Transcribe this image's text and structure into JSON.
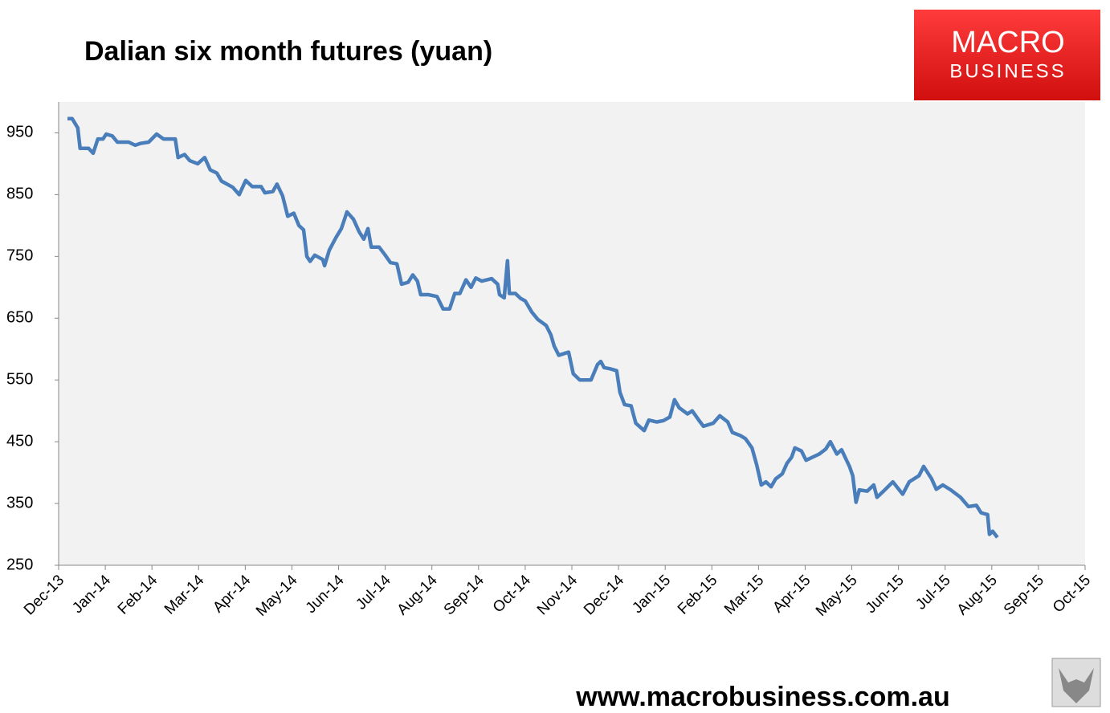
{
  "chart_data": {
    "type": "line",
    "title": "Dalian six month futures (yuan)",
    "x": [
      0.19,
      0.29,
      0.41,
      0.46,
      0.64,
      0.74,
      0.84,
      0.95,
      1.02,
      1.15,
      1.26,
      1.5,
      1.64,
      1.76,
      1.93,
      2.1,
      2.25,
      2.5,
      2.56,
      2.7,
      2.81,
      2.98,
      3.13,
      3.25,
      3.39,
      3.49,
      3.73,
      3.87,
      4.01,
      4.15,
      4.34,
      4.42,
      4.59,
      4.68,
      4.8,
      4.91,
      5.04,
      5.15,
      5.25,
      5.32,
      5.39,
      5.49,
      5.66,
      5.7,
      5.8,
      5.94,
      6.06,
      6.18,
      6.32,
      6.44,
      6.54,
      6.63,
      6.7,
      6.87,
      7.0,
      7.11,
      7.25,
      7.35,
      7.49,
      7.59,
      7.69,
      7.76,
      7.93,
      8.11,
      8.24,
      8.38,
      8.49,
      8.6,
      8.73,
      8.84,
      8.94,
      9.07,
      9.28,
      9.41,
      9.45,
      9.55,
      9.62,
      9.66,
      9.79,
      9.9,
      10.0,
      10.14,
      10.27,
      10.45,
      10.55,
      10.62,
      10.72,
      10.93,
      11.03,
      11.17,
      11.41,
      11.55,
      11.62,
      11.69,
      11.82,
      11.96,
      12.03,
      12.13,
      12.27,
      12.37,
      12.55,
      12.65,
      12.82,
      12.96,
      13.1,
      13.2,
      13.3,
      13.48,
      13.58,
      13.72,
      13.82,
      14.03,
      14.17,
      14.34,
      14.44,
      14.61,
      14.72,
      14.86,
      14.96,
      15.06,
      15.16,
      15.27,
      15.37,
      15.51,
      15.61,
      15.71,
      15.78,
      15.92,
      16.02,
      16.16,
      16.3,
      16.44,
      16.54,
      16.68,
      16.78,
      16.95,
      17.02,
      17.09,
      17.16,
      17.33,
      17.47,
      17.54,
      17.68,
      17.88,
      18.09,
      18.23,
      18.44,
      18.54,
      18.71,
      18.81,
      18.95,
      19.12,
      19.33,
      19.5,
      19.67,
      19.77,
      19.91,
      19.95,
      20.02,
      20.12
    ],
    "values": [
      973,
      973,
      958,
      925,
      925,
      917,
      940,
      940,
      948,
      945,
      935,
      935,
      930,
      933,
      935,
      948,
      940,
      940,
      910,
      915,
      905,
      900,
      910,
      890,
      885,
      872,
      862,
      850,
      873,
      863,
      863,
      853,
      855,
      867,
      848,
      815,
      820,
      800,
      793,
      750,
      742,
      752,
      745,
      735,
      760,
      780,
      795,
      822,
      810,
      790,
      778,
      795,
      765,
      765,
      752,
      740,
      738,
      705,
      708,
      720,
      710,
      688,
      688,
      685,
      665,
      665,
      690,
      690,
      712,
      700,
      715,
      710,
      714,
      705,
      688,
      683,
      743,
      690,
      690,
      682,
      678,
      660,
      648,
      638,
      623,
      605,
      590,
      595,
      560,
      550,
      550,
      575,
      580,
      570,
      568,
      565,
      530,
      510,
      508,
      480,
      468,
      485,
      482,
      484,
      490,
      518,
      505,
      495,
      500,
      485,
      475,
      480,
      492,
      482,
      465,
      460,
      455,
      440,
      413,
      380,
      385,
      377,
      390,
      398,
      415,
      425,
      440,
      435,
      420,
      425,
      430,
      438,
      450,
      430,
      437,
      410,
      395,
      352,
      372,
      370,
      380,
      360,
      370,
      385,
      365,
      385,
      395,
      410,
      390,
      373,
      380,
      372,
      360,
      345,
      347,
      335,
      332,
      300,
      305,
      295
    ],
    "color": "#4a7ebb",
    "xlim": [
      0,
      22
    ],
    "xticks": [
      {
        "value": 0,
        "label": "Dec-13"
      },
      {
        "value": 1,
        "label": "Jan-14"
      },
      {
        "value": 2,
        "label": "Feb-14"
      },
      {
        "value": 3,
        "label": "Mar-14"
      },
      {
        "value": 4,
        "label": "Apr-14"
      },
      {
        "value": 5,
        "label": "May-14"
      },
      {
        "value": 6,
        "label": "Jun-14"
      },
      {
        "value": 7,
        "label": "Jul-14"
      },
      {
        "value": 8,
        "label": "Aug-14"
      },
      {
        "value": 9,
        "label": "Sep-14"
      },
      {
        "value": 10,
        "label": "Oct-14"
      },
      {
        "value": 11,
        "label": "Nov-14"
      },
      {
        "value": 12,
        "label": "Dec-14"
      },
      {
        "value": 13,
        "label": "Jan-15"
      },
      {
        "value": 14,
        "label": "Feb-15"
      },
      {
        "value": 15,
        "label": "Mar-15"
      },
      {
        "value": 16,
        "label": "Apr-15"
      },
      {
        "value": 17,
        "label": "May-15"
      },
      {
        "value": 18,
        "label": "Jun-15"
      },
      {
        "value": 19,
        "label": "Jul-15"
      },
      {
        "value": 20,
        "label": "Aug-15"
      },
      {
        "value": 21,
        "label": "Sep-15"
      },
      {
        "value": 22,
        "label": "Oct-15"
      }
    ],
    "ylim": [
      250,
      1000
    ],
    "yticks": [
      250,
      350,
      450,
      550,
      650,
      750,
      850,
      950
    ]
  },
  "branding": {
    "logo_line1": "MACRO",
    "logo_line2": "BUSINESS",
    "url": "www.macrobusiness.com.au"
  }
}
